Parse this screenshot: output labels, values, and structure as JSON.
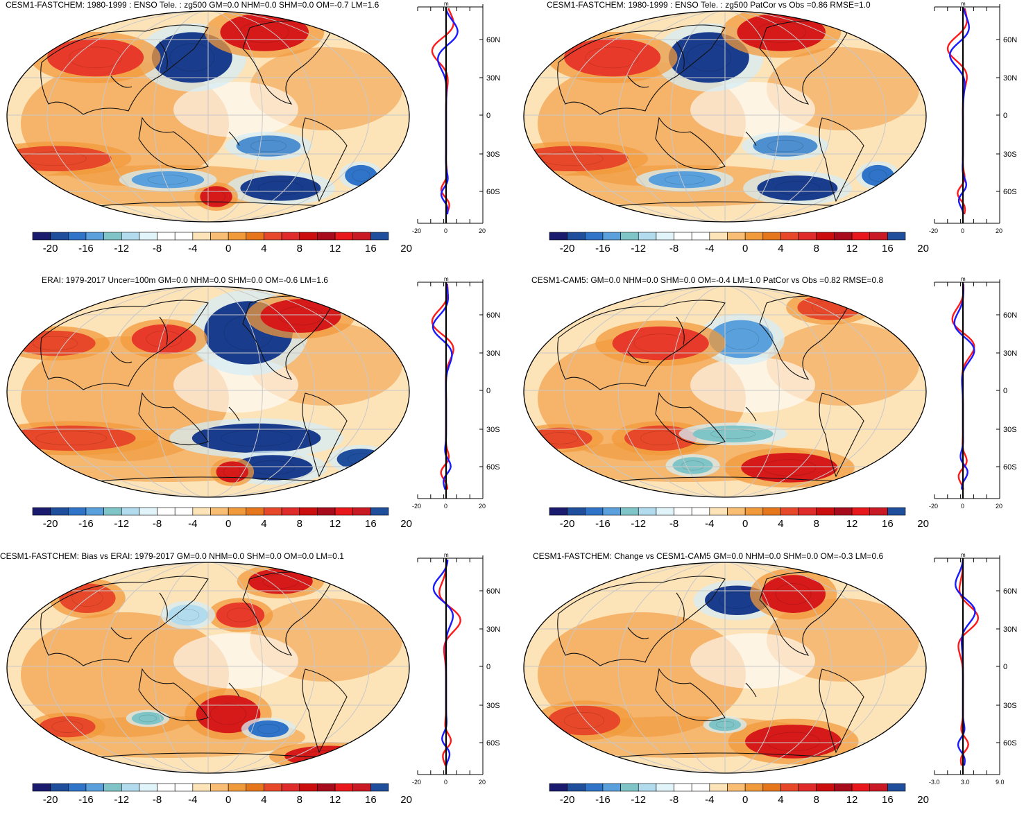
{
  "colorbar": {
    "colors": [
      "#1a1a6e",
      "#1f4e9c",
      "#2f74c8",
      "#5aa0dc",
      "#7fc5c8",
      "#b2dcee",
      "#e0f4fa",
      "#ffffff",
      "#ffffff",
      "#fde3b8",
      "#f9bd74",
      "#f19a3c",
      "#e6761b",
      "#e8482a",
      "#e02b2b",
      "#cc0d0d",
      "#a80c1c",
      "#e8171b",
      "#c91924",
      "#1f4e9c"
    ],
    "labels": [
      "-20",
      "-16",
      "-12",
      "-8",
      "-4",
      "0",
      "4",
      "8",
      "12",
      "16",
      "20"
    ]
  },
  "panels": [
    {
      "title": "CESM1-FASTCHEM: 1980-1999 : ENSO Tele. : zg500 GM=0.0 NHM=0.0 SHM=0.0 OM=-0.7 LM=1.6",
      "unit": "m",
      "lat_labels": [
        "60N",
        "30N",
        "0",
        "30S",
        "60S"
      ],
      "profile_ticks": [
        "-20",
        "0",
        "20"
      ],
      "blobs": [
        {
          "c": "#1a3c8c",
          "lon": 0.46,
          "lat": 0.22,
          "rx": 0.1,
          "ry": 0.12
        },
        {
          "c": "#d61a1a",
          "lon": 0.64,
          "lat": 0.1,
          "rx": 0.11,
          "ry": 0.09
        },
        {
          "c": "#e83a2a",
          "lon": 0.22,
          "lat": 0.22,
          "rx": 0.12,
          "ry": 0.09
        },
        {
          "c": "#e8482a",
          "lon": 0.12,
          "lat": 0.7,
          "rx": 0.14,
          "ry": 0.06
        },
        {
          "c": "#4e8fd0",
          "lon": 0.65,
          "lat": 0.64,
          "rx": 0.08,
          "ry": 0.05
        },
        {
          "c": "#1a3c8c",
          "lon": 0.68,
          "lat": 0.84,
          "rx": 0.1,
          "ry": 0.06
        },
        {
          "c": "#d61a1a",
          "lon": 0.52,
          "lat": 0.88,
          "rx": 0.04,
          "ry": 0.05
        },
        {
          "c": "#5aa0dc",
          "lon": 0.4,
          "lat": 0.8,
          "rx": 0.09,
          "ry": 0.04
        },
        {
          "c": "#2f74c8",
          "lon": 0.88,
          "lat": 0.78,
          "rx": 0.04,
          "ry": 0.05
        }
      ]
    },
    {
      "title": "CESM1-FASTCHEM: 1980-1999 : ENSO Tele. : zg500 PatCor vs Obs =0.86 RMSE=1.0",
      "unit": "m",
      "lat_labels": [
        "60N",
        "30N",
        "0",
        "30S",
        "60S"
      ],
      "profile_ticks": [
        "-20",
        "0",
        "20"
      ],
      "blobs": [
        {
          "c": "#1a3c8c",
          "lon": 0.46,
          "lat": 0.22,
          "rx": 0.1,
          "ry": 0.12
        },
        {
          "c": "#d61a1a",
          "lon": 0.64,
          "lat": 0.1,
          "rx": 0.11,
          "ry": 0.09
        },
        {
          "c": "#e83a2a",
          "lon": 0.22,
          "lat": 0.22,
          "rx": 0.12,
          "ry": 0.09
        },
        {
          "c": "#e8482a",
          "lon": 0.12,
          "lat": 0.7,
          "rx": 0.14,
          "ry": 0.06
        },
        {
          "c": "#4e8fd0",
          "lon": 0.65,
          "lat": 0.64,
          "rx": 0.08,
          "ry": 0.05
        },
        {
          "c": "#1a3c8c",
          "lon": 0.68,
          "lat": 0.84,
          "rx": 0.1,
          "ry": 0.06
        },
        {
          "c": "#5aa0dc",
          "lon": 0.4,
          "lat": 0.8,
          "rx": 0.09,
          "ry": 0.04
        },
        {
          "c": "#2f74c8",
          "lon": 0.88,
          "lat": 0.78,
          "rx": 0.04,
          "ry": 0.05
        }
      ]
    },
    {
      "title": "ERAI: 1979-2017 Uncer=100m GM=0.0 NHM=0.0 SHM=0.0 OM=-0.6 LM=1.6",
      "unit": "m",
      "lat_labels": [
        "60N",
        "30N",
        "0",
        "30S",
        "60S"
      ],
      "profile_ticks": [
        "-20",
        "0",
        "20"
      ],
      "blobs": [
        {
          "c": "#1a3c8c",
          "lon": 0.6,
          "lat": 0.22,
          "rx": 0.11,
          "ry": 0.15
        },
        {
          "c": "#d61a1a",
          "lon": 0.73,
          "lat": 0.14,
          "rx": 0.1,
          "ry": 0.08
        },
        {
          "c": "#e83a2a",
          "lon": 0.39,
          "lat": 0.25,
          "rx": 0.08,
          "ry": 0.07
        },
        {
          "c": "#e8482a",
          "lon": 0.12,
          "lat": 0.27,
          "rx": 0.1,
          "ry": 0.06
        },
        {
          "c": "#e8482a",
          "lon": 0.16,
          "lat": 0.72,
          "rx": 0.16,
          "ry": 0.06
        },
        {
          "c": "#1a3c8c",
          "lon": 0.62,
          "lat": 0.72,
          "rx": 0.16,
          "ry": 0.07
        },
        {
          "c": "#1a3c8c",
          "lon": 0.66,
          "lat": 0.86,
          "rx": 0.1,
          "ry": 0.06
        },
        {
          "c": "#d61a1a",
          "lon": 0.56,
          "lat": 0.88,
          "rx": 0.04,
          "ry": 0.05
        },
        {
          "c": "#1f4e9c",
          "lon": 0.88,
          "lat": 0.82,
          "rx": 0.06,
          "ry": 0.05
        }
      ]
    },
    {
      "title": "CESM1-CAM5: GM=0.0 NHM=0.0 SHM=0.0 OM=-0.4 LM=1.0 PatCor vs Obs =0.82 RMSE=0.8",
      "unit": "m",
      "lat_labels": [
        "60N",
        "30N",
        "0",
        "30S",
        "60S"
      ],
      "profile_ticks": [
        "-20",
        "0",
        "20"
      ],
      "blobs": [
        {
          "c": "#5aa0dc",
          "lon": 0.54,
          "lat": 0.25,
          "rx": 0.08,
          "ry": 0.09
        },
        {
          "c": "#e83a2a",
          "lon": 0.34,
          "lat": 0.27,
          "rx": 0.12,
          "ry": 0.08
        },
        {
          "c": "#e8482a",
          "lon": 0.76,
          "lat": 0.1,
          "rx": 0.08,
          "ry": 0.06
        },
        {
          "c": "#e8482a",
          "lon": 0.09,
          "lat": 0.72,
          "rx": 0.08,
          "ry": 0.05
        },
        {
          "c": "#e8482a",
          "lon": 0.34,
          "lat": 0.72,
          "rx": 0.09,
          "ry": 0.06
        },
        {
          "c": "#d61a1a",
          "lon": 0.66,
          "lat": 0.86,
          "rx": 0.12,
          "ry": 0.07
        },
        {
          "c": "#7fc5c8",
          "lon": 0.52,
          "lat": 0.7,
          "rx": 0.1,
          "ry": 0.04
        },
        {
          "c": "#7fc5c8",
          "lon": 0.42,
          "lat": 0.85,
          "rx": 0.05,
          "ry": 0.04
        }
      ]
    },
    {
      "title": "CESM1-FASTCHEM: Bias vs ERAI: 1979-2017 GM=0.0 NHM=0.0 SHM=0.0 OM=0.0 LM=0.1",
      "unit": "m",
      "lat_labels": [
        "60N",
        "30N",
        "0",
        "30S",
        "60S"
      ],
      "profile_ticks": [
        "-20",
        "0",
        "20"
      ],
      "blobs": [
        {
          "c": "#e8482a",
          "lon": 0.2,
          "lat": 0.17,
          "rx": 0.07,
          "ry": 0.07
        },
        {
          "c": "#e83a2a",
          "lon": 0.58,
          "lat": 0.25,
          "rx": 0.06,
          "ry": 0.06
        },
        {
          "c": "#d61a1a",
          "lon": 0.68,
          "lat": 0.09,
          "rx": 0.08,
          "ry": 0.06
        },
        {
          "c": "#b2dcee",
          "lon": 0.45,
          "lat": 0.25,
          "rx": 0.05,
          "ry": 0.05
        },
        {
          "c": "#e8482a",
          "lon": 0.15,
          "lat": 0.78,
          "rx": 0.07,
          "ry": 0.05
        },
        {
          "c": "#d61a1a",
          "lon": 0.55,
          "lat": 0.72,
          "rx": 0.08,
          "ry": 0.09
        },
        {
          "c": "#2f74c8",
          "lon": 0.65,
          "lat": 0.79,
          "rx": 0.05,
          "ry": 0.04
        },
        {
          "c": "#d61a1a",
          "lon": 0.8,
          "lat": 0.92,
          "rx": 0.11,
          "ry": 0.05
        },
        {
          "c": "#7fc5c8",
          "lon": 0.35,
          "lat": 0.74,
          "rx": 0.04,
          "ry": 0.03
        }
      ]
    },
    {
      "title": "CESM1-FASTCHEM: Change vs CESM1-CAM5 GM=0.0 NHM=0.0 SHM=0.0 OM=-0.3 LM=0.6",
      "unit": "m",
      "lat_labels": [
        "60N",
        "30N",
        "0",
        "30S",
        "60S"
      ],
      "profile_ticks": [
        "-3.0",
        "3.0",
        "9.0"
      ],
      "blobs": [
        {
          "c": "#1a3c8c",
          "lon": 0.53,
          "lat": 0.18,
          "rx": 0.08,
          "ry": 0.07
        },
        {
          "c": "#d61a1a",
          "lon": 0.67,
          "lat": 0.15,
          "rx": 0.08,
          "ry": 0.09
        },
        {
          "c": "#e8482a",
          "lon": 0.15,
          "lat": 0.75,
          "rx": 0.09,
          "ry": 0.07
        },
        {
          "c": "#d61a1a",
          "lon": 0.67,
          "lat": 0.85,
          "rx": 0.12,
          "ry": 0.08
        },
        {
          "c": "#7fc5c8",
          "lon": 0.5,
          "lat": 0.77,
          "rx": 0.04,
          "ry": 0.03
        }
      ]
    }
  ]
}
